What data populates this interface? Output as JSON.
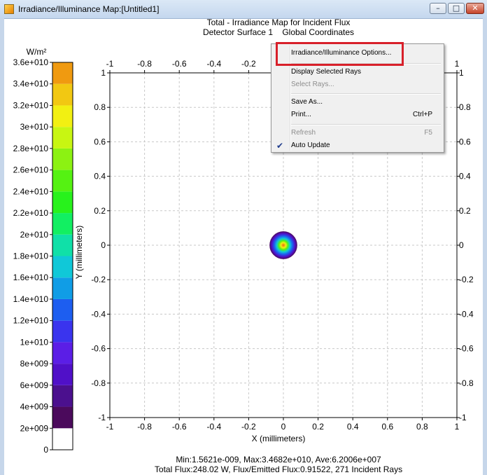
{
  "window": {
    "title": "Irradiance/Illuminance Map:[Untitled1]",
    "minimize_glyph": "–",
    "maximize_glyph": "□",
    "close_glyph": "✕"
  },
  "chart_data": {
    "type": "heatmap",
    "title": "Total - Irradiance Map for Incident Flux",
    "subtitle": "Detector Surface 1    Global Coordinates",
    "xlabel": "X (millimeters)",
    "ylabel": "Y (millimeters)",
    "xlim": [
      -1,
      1
    ],
    "ylim": [
      -1,
      1
    ],
    "grid": true,
    "x_ticks": [
      "-1",
      "-0.8",
      "-0.6",
      "-0.4",
      "-0.2",
      "0",
      "0.2",
      "0.4",
      "0.6",
      "0.8",
      "1"
    ],
    "y_ticks": [
      "-1",
      "-0.8",
      "-0.6",
      "-0.4",
      "-0.2",
      "0",
      "0.2",
      "0.4",
      "0.6",
      "0.8",
      "1"
    ],
    "spot": {
      "center": [
        0,
        0
      ],
      "radius": 0.08
    },
    "colorbar": {
      "unit": "W/m²",
      "labels": [
        "0",
        "2e+009",
        "4e+009",
        "6e+009",
        "8e+009",
        "1e+010",
        "1.2e+010",
        "1.4e+010",
        "1.6e+010",
        "1.8e+010",
        "2e+010",
        "2.2e+010",
        "2.4e+010",
        "2.6e+010",
        "2.8e+010",
        "3e+010",
        "3.2e+010",
        "3.4e+010",
        "3.6e+010"
      ],
      "colors": [
        "#ffffff",
        "#4b0a5c",
        "#4b108e",
        "#5010c8",
        "#5b1ee6",
        "#3a34ee",
        "#1d5ef0",
        "#109de6",
        "#10c8d8",
        "#10e0a8",
        "#12ef62",
        "#28f21c",
        "#55f212",
        "#8cf212",
        "#c8f612",
        "#f2f012",
        "#f2c812",
        "#f09a10",
        "#e86a10"
      ]
    },
    "stats_line1": "Min:1.5621e-009, Max:3.4682e+010, Ave:6.2006e+007",
    "stats_line2": "Total Flux:248.02 W, Flux/Emitted Flux:0.91522, 271 Incident Rays"
  },
  "context_menu": {
    "items": [
      {
        "label": "Irradiance/Illuminance Options...",
        "shortcut": "",
        "enabled": true
      },
      {
        "label": "Display Selected Rays",
        "shortcut": "",
        "enabled": true
      },
      {
        "label": "Select Rays...",
        "shortcut": "",
        "enabled": false
      },
      {
        "label": "Save As...",
        "shortcut": "",
        "enabled": true
      },
      {
        "label": "Print...",
        "shortcut": "Ctrl+P",
        "enabled": true
      },
      {
        "label": "Refresh",
        "shortcut": "F5",
        "enabled": false
      },
      {
        "label": "Auto Update",
        "shortcut": "",
        "enabled": true,
        "checked": true
      }
    ],
    "check_glyph": "✔"
  },
  "annotation": {
    "highlight_color": "#d8202a"
  }
}
